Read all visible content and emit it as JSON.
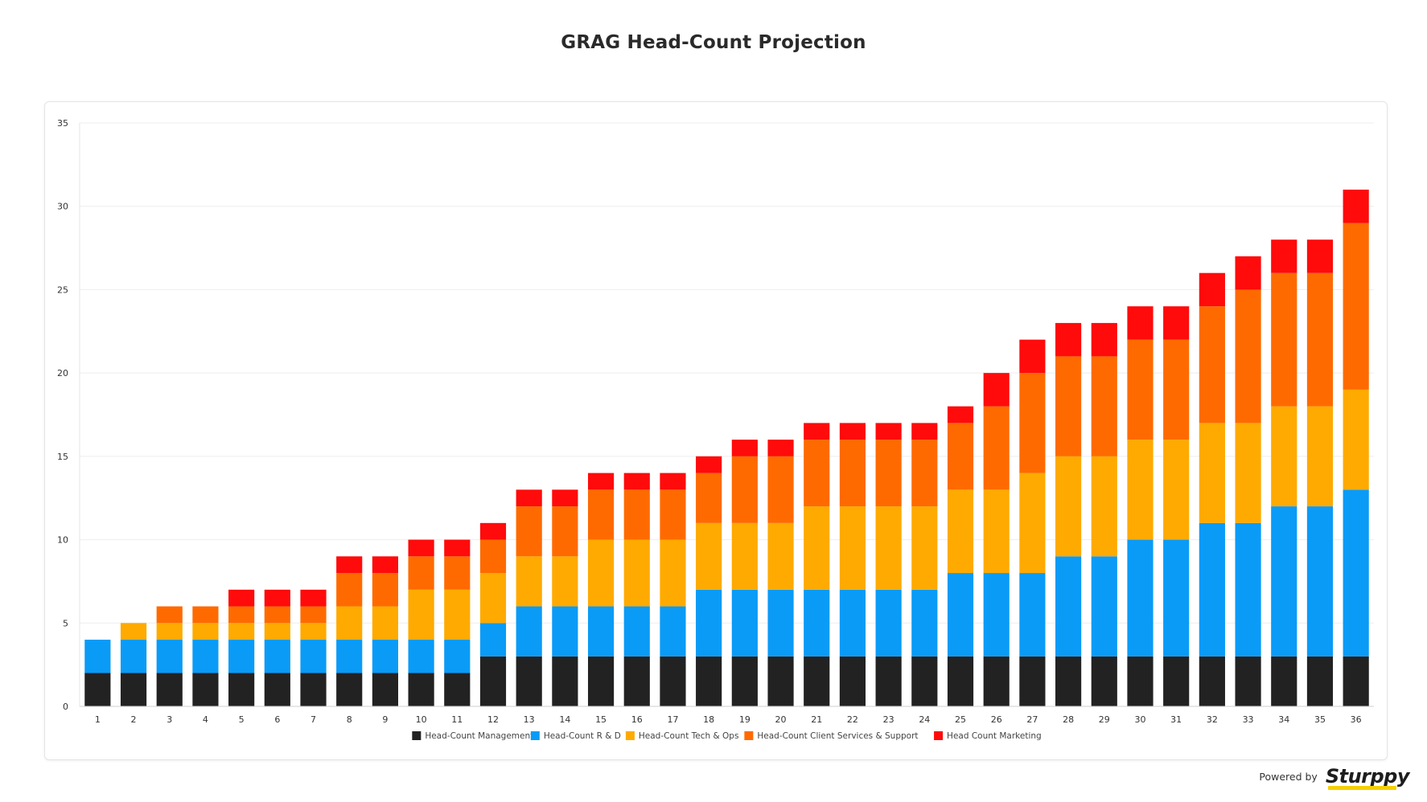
{
  "page": {
    "title": "GRAG Head-Count Projection",
    "powered_by": "Powered by",
    "brand": "Sturppy"
  },
  "colors": {
    "management": "#222222",
    "rnd": "#0a9bf7",
    "techops": "#ffaa00",
    "client": "#ff6a00",
    "marketing": "#ff0b0b",
    "grid": "#eeeeee",
    "axis_text": "#333333"
  },
  "chart_data": {
    "type": "bar",
    "stacked": true,
    "title": "GRAG Head-Count Projection",
    "xlabel": "",
    "ylabel": "",
    "ylim": [
      0,
      35
    ],
    "yticks": [
      0,
      5,
      10,
      15,
      20,
      25,
      30,
      35
    ],
    "grid": true,
    "legend_position": "bottom",
    "categories": [
      "1",
      "2",
      "3",
      "4",
      "5",
      "6",
      "7",
      "8",
      "9",
      "10",
      "11",
      "12",
      "13",
      "14",
      "15",
      "16",
      "17",
      "18",
      "19",
      "20",
      "21",
      "22",
      "23",
      "24",
      "25",
      "26",
      "27",
      "28",
      "29",
      "30",
      "31",
      "32",
      "33",
      "34",
      "35",
      "36"
    ],
    "series": [
      {
        "name": "Head-Count Management",
        "color": "#222222",
        "values": [
          2,
          2,
          2,
          2,
          2,
          2,
          2,
          2,
          2,
          2,
          2,
          3,
          3,
          3,
          3,
          3,
          3,
          3,
          3,
          3,
          3,
          3,
          3,
          3,
          3,
          3,
          3,
          3,
          3,
          3,
          3,
          3,
          3,
          3,
          3,
          3
        ]
      },
      {
        "name": "Head-Count R & D",
        "color": "#0a9bf7",
        "values": [
          2,
          2,
          2,
          2,
          2,
          2,
          2,
          2,
          2,
          2,
          2,
          2,
          3,
          3,
          3,
          3,
          3,
          4,
          4,
          4,
          4,
          4,
          4,
          4,
          5,
          5,
          5,
          6,
          6,
          7,
          7,
          8,
          8,
          9,
          9,
          10
        ]
      },
      {
        "name": "Head-Count Tech & Ops",
        "color": "#ffaa00",
        "values": [
          0,
          1,
          1,
          1,
          1,
          1,
          1,
          2,
          2,
          3,
          3,
          3,
          3,
          3,
          4,
          4,
          4,
          4,
          4,
          4,
          5,
          5,
          5,
          5,
          5,
          5,
          6,
          6,
          6,
          6,
          6,
          6,
          6,
          6,
          6,
          6
        ]
      },
      {
        "name": "Head-Count Client Services & Support",
        "color": "#ff6a00",
        "values": [
          0,
          0,
          1,
          1,
          1,
          1,
          1,
          2,
          2,
          2,
          2,
          2,
          3,
          3,
          3,
          3,
          3,
          3,
          4,
          4,
          4,
          4,
          4,
          4,
          4,
          5,
          6,
          6,
          6,
          6,
          6,
          7,
          8,
          8,
          8,
          10
        ]
      },
      {
        "name": "Head Count Marketing",
        "color": "#ff0b0b",
        "values": [
          0,
          0,
          0,
          0,
          1,
          1,
          1,
          1,
          1,
          1,
          1,
          1,
          1,
          1,
          1,
          1,
          1,
          1,
          1,
          1,
          1,
          1,
          1,
          1,
          1,
          2,
          2,
          2,
          2,
          2,
          2,
          2,
          2,
          2,
          2,
          2
        ]
      }
    ]
  }
}
